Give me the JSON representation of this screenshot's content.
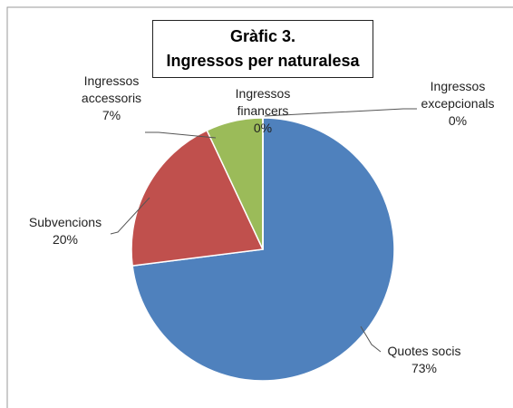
{
  "chart_data": {
    "type": "pie",
    "title": [
      "Gràfic 3.",
      "Ingressos per naturalesa"
    ],
    "categories": [
      "Quotes socis",
      "Subvencions",
      "Ingressos accessoris",
      "Ingressos financers",
      "Ingressos excepcionals"
    ],
    "values": [
      73,
      20,
      7,
      0,
      0
    ],
    "value_labels": [
      "73%",
      "20%",
      "7%",
      "0%",
      "0%"
    ],
    "colors": [
      "#4f81bd",
      "#c0504d",
      "#9bbb59",
      "#8064a2",
      "#4bacc6"
    ]
  }
}
